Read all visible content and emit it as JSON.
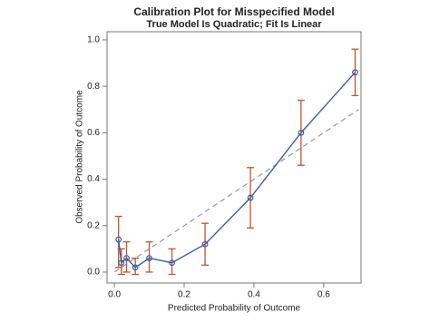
{
  "chart_data": {
    "type": "line",
    "title": "Calibration Plot for Misspecified Model",
    "subtitle": "True Model Is Quadratic; Fit Is Linear",
    "x_label": "Predicted Probability of Outcome",
    "y_label": "Observed Probability of Outcome",
    "xlim": [
      -0.021,
      0.707
    ],
    "ylim": [
      -0.047,
      1.035
    ],
    "xticks": [
      {
        "value": 0,
        "label": "0.0"
      },
      0.2,
      0.4,
      0.6
    ],
    "yticks": [
      {
        "value": 0,
        "label": "0.0"
      },
      0.2,
      0.4,
      0.6,
      0.8,
      {
        "value": 1,
        "label": "1.0"
      }
    ],
    "series": [
      {
        "color": "#3b5ea8",
        "error_color": "#c5532b",
        "x": [
          0.012,
          0.02,
          0.035,
          0.06,
          0.1,
          0.165,
          0.26,
          0.39,
          0.535,
          0.69
        ],
        "values": [
          0.14,
          0.04,
          0.06,
          0.02,
          0.06,
          0.04,
          0.12,
          0.32,
          0.6,
          0.86
        ],
        "lower": [
          0.02,
          -0.01,
          0.0,
          -0.01,
          0.0,
          -0.01,
          0.03,
          0.19,
          0.46,
          0.76
        ],
        "upper": [
          0.24,
          0.1,
          0.13,
          0.06,
          0.13,
          0.1,
          0.21,
          0.45,
          0.74,
          0.96
        ]
      }
    ],
    "reference_line": {
      "color": "#999999",
      "x": [
        0,
        0.7
      ],
      "y": [
        0,
        0.7
      ]
    }
  }
}
